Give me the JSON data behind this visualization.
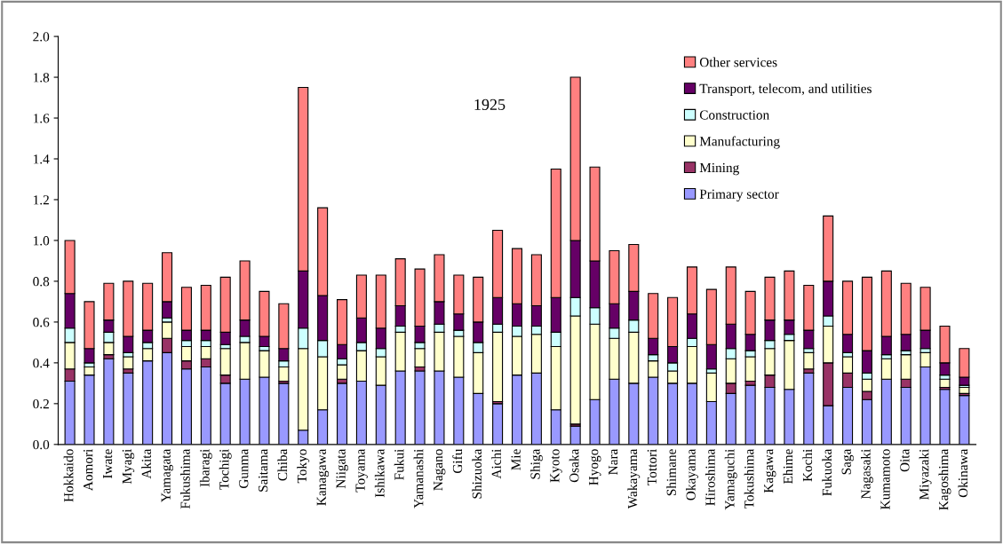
{
  "chart_data": {
    "type": "bar",
    "stacked": true,
    "annotations": [
      "1925"
    ],
    "legend": "top right",
    "grid": false,
    "categories": [
      "Hokkaido",
      "Aomori",
      "Iwate",
      "Myagi",
      "Akita",
      "Yamagata",
      "Fukushima",
      "Ibaragi",
      "Tochigi",
      "Gunma",
      "Saitama",
      "Chiba",
      "Tokyo",
      "Kanagawa",
      "Niigata",
      "Toyama",
      "Ishikawa",
      "Fukui",
      "Yamanashi",
      "Nagano",
      "Gifu",
      "Shizuoka",
      "Aichi",
      "Mie",
      "Shiga",
      "Kyoto",
      "Osaka",
      "Hyogo",
      "Nara",
      "Wakayama",
      "Tottori",
      "Shimane",
      "Okayama",
      "Hiroshima",
      "Yamaguchi",
      "Tokushima",
      "Kagawa",
      "Ehime",
      "Kochi",
      "Fukuoka",
      "Saga",
      "Nagasaki",
      "Kumamoto",
      "Oita",
      "Miyazaki",
      "Kagoshima",
      "Okinawa"
    ],
    "ylim": [
      0,
      2.0
    ],
    "yticks": [
      {
        "value": 0,
        "label": "0.0"
      },
      {
        "value": 0.2,
        "label": "0.2"
      },
      {
        "value": 0.4,
        "label": "0.4"
      },
      {
        "value": 0.6,
        "label": "0.6"
      },
      {
        "value": 0.8,
        "label": "0.8"
      },
      {
        "value": 1.0,
        "label": "1.0"
      },
      {
        "value": 1.2,
        "label": "1.2"
      },
      {
        "value": 1.4,
        "label": "1.4"
      },
      {
        "value": 1.6,
        "label": "1.6"
      },
      {
        "value": 1.8,
        "label": "1.8"
      },
      {
        "value": 2.0,
        "label": "2.0"
      }
    ],
    "series": [
      {
        "name": "Primary sector",
        "color": "#9999ff",
        "values": [
          0.31,
          0.34,
          0.42,
          0.35,
          0.41,
          0.45,
          0.37,
          0.38,
          0.3,
          0.32,
          0.33,
          0.3,
          0.07,
          0.17,
          0.3,
          0.31,
          0.29,
          0.36,
          0.36,
          0.36,
          0.33,
          0.25,
          0.2,
          0.34,
          0.35,
          0.17,
          0.09,
          0.22,
          0.32,
          0.3,
          0.33,
          0.3,
          0.3,
          0.21,
          0.25,
          0.29,
          0.28,
          0.27,
          0.35,
          0.19,
          0.28,
          0.22,
          0.32,
          0.28,
          0.38,
          0.27,
          0.24
        ]
      },
      {
        "name": "Mining",
        "color": "#993366",
        "values": [
          0.06,
          0,
          0.02,
          0.02,
          0,
          0.07,
          0.04,
          0.04,
          0.04,
          0,
          0,
          0.01,
          0,
          0,
          0.02,
          0,
          0,
          0,
          0.02,
          0,
          0,
          0,
          0.01,
          0,
          0,
          0,
          0.01,
          0,
          0,
          0,
          0,
          0,
          0,
          0,
          0.05,
          0.02,
          0.06,
          0,
          0.02,
          0.21,
          0.07,
          0.04,
          0,
          0.04,
          0,
          0.01,
          0.01
        ]
      },
      {
        "name": "Manufacturing",
        "color": "#ffffcc",
        "values": [
          0.13,
          0.04,
          0.06,
          0.06,
          0.06,
          0.08,
          0.07,
          0.06,
          0.13,
          0.18,
          0.13,
          0.07,
          0.4,
          0.26,
          0.07,
          0.15,
          0.14,
          0.19,
          0.09,
          0.19,
          0.2,
          0.2,
          0.34,
          0.19,
          0.19,
          0.31,
          0.53,
          0.37,
          0.2,
          0.25,
          0.08,
          0.06,
          0.18,
          0.14,
          0.12,
          0.12,
          0.13,
          0.24,
          0.08,
          0.18,
          0.08,
          0.06,
          0.1,
          0.12,
          0.07,
          0.04,
          0.03
        ]
      },
      {
        "name": "Construction",
        "color": "#ccffff",
        "values": [
          0.07,
          0.02,
          0.05,
          0.02,
          0.03,
          0.02,
          0.03,
          0.03,
          0.02,
          0.03,
          0.02,
          0.03,
          0.1,
          0.08,
          0.03,
          0.04,
          0.04,
          0.03,
          0.03,
          0.04,
          0.03,
          0.05,
          0.04,
          0.05,
          0.04,
          0.07,
          0.09,
          0.08,
          0.05,
          0.06,
          0.03,
          0.04,
          0.04,
          0.02,
          0.05,
          0.03,
          0.04,
          0.03,
          0.02,
          0.05,
          0.02,
          0.03,
          0.02,
          0.02,
          0.02,
          0.02,
          0.01
        ]
      },
      {
        "name": "Transport, telecom, and utilities",
        "color": "#660066",
        "values": [
          0.17,
          0.07,
          0.06,
          0.08,
          0.06,
          0.08,
          0.05,
          0.05,
          0.06,
          0.08,
          0.05,
          0.06,
          0.28,
          0.22,
          0.07,
          0.12,
          0.1,
          0.1,
          0.08,
          0.11,
          0.08,
          0.1,
          0.13,
          0.11,
          0.1,
          0.17,
          0.28,
          0.23,
          0.12,
          0.14,
          0.08,
          0.08,
          0.12,
          0.12,
          0.12,
          0.08,
          0.1,
          0.07,
          0.09,
          0.17,
          0.09,
          0.11,
          0.09,
          0.08,
          0.09,
          0.06,
          0.04
        ]
      },
      {
        "name": "Other services",
        "color": "#ff8080",
        "values": [
          0.26,
          0.23,
          0.18,
          0.27,
          0.23,
          0.24,
          0.21,
          0.22,
          0.27,
          0.29,
          0.22,
          0.22,
          0.9,
          0.43,
          0.22,
          0.21,
          0.26,
          0.23,
          0.28,
          0.23,
          0.19,
          0.22,
          0.33,
          0.27,
          0.25,
          0.63,
          0.8,
          0.46,
          0.26,
          0.23,
          0.22,
          0.24,
          0.23,
          0.27,
          0.28,
          0.21,
          0.21,
          0.24,
          0.22,
          0.32,
          0.26,
          0.36,
          0.32,
          0.25,
          0.21,
          0.18,
          0.14
        ]
      }
    ]
  }
}
